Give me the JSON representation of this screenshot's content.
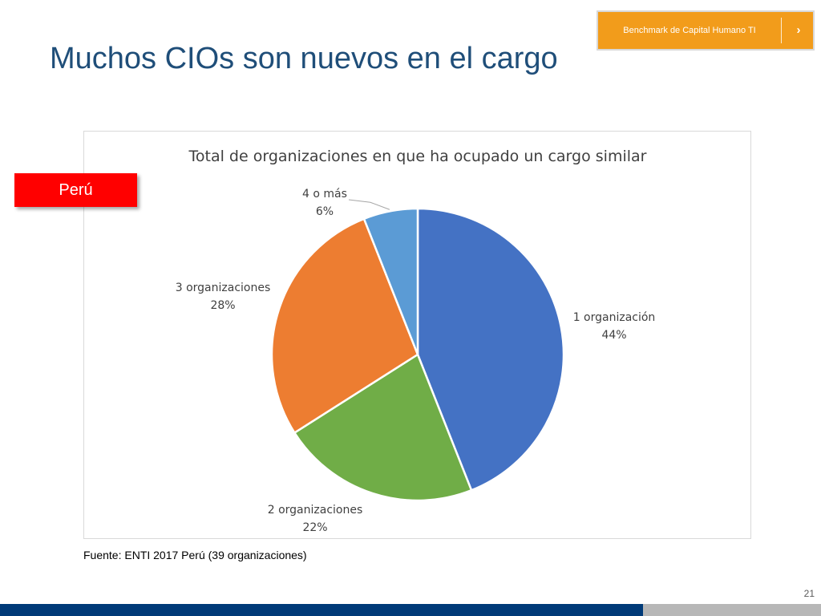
{
  "badge": {
    "label": "Benchmark de Capital Humano TI",
    "arrow": "›"
  },
  "page_title": "Muchos CIOs son nuevos en el cargo",
  "country_tag": "Perú",
  "source": "Fuente: ENTI 2017 Perú (39 organizaciones)",
  "page_number": "21",
  "colors": {
    "accent": "#f29c1b",
    "title": "#1f4e79",
    "tag": "#ff0000",
    "footer": "#003a78"
  },
  "chart_data": {
    "type": "pie",
    "title": "Total de organizaciones en que ha ocupado un cargo similar",
    "categories": [
      "1 organización",
      "2 organizaciones",
      "3 organizaciones",
      "4 o más"
    ],
    "values": [
      44,
      22,
      28,
      6
    ],
    "labels": [
      "44%",
      "22%",
      "28%",
      "6%"
    ],
    "colors": [
      "#4472c4",
      "#70ad47",
      "#ed7d31",
      "#5b9bd5"
    ],
    "legend": "none"
  }
}
